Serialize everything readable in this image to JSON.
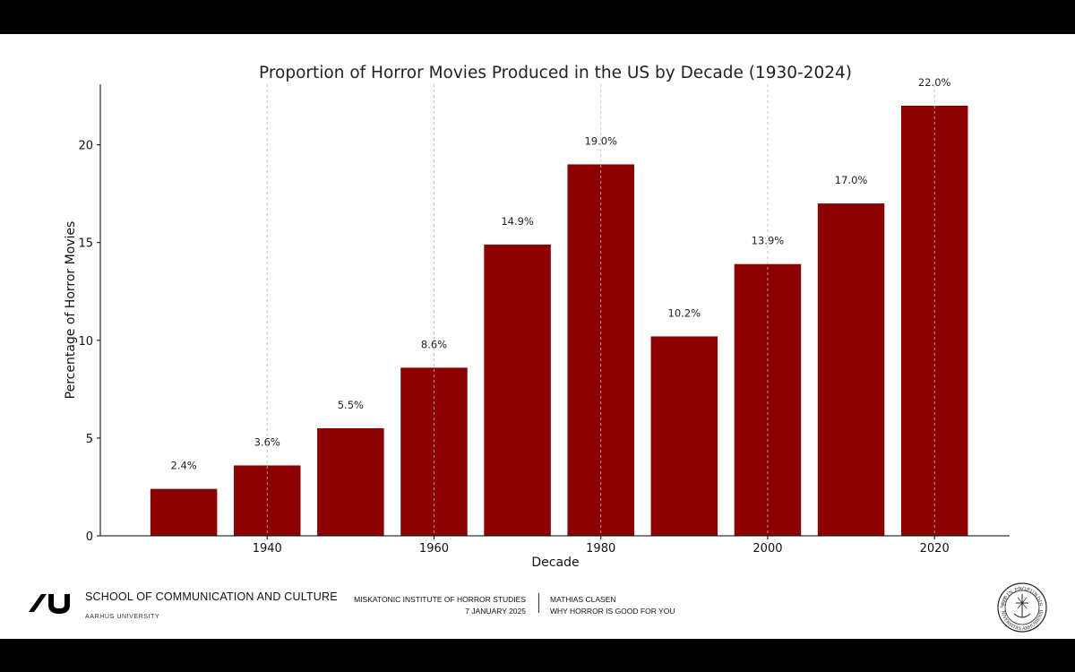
{
  "chart_data": {
    "type": "bar",
    "title": "Proportion of Horror Movies Produced in the US by Decade (1930-2024)",
    "xlabel": "Decade",
    "ylabel": "Percentage of Horror Movies",
    "x": [
      1930,
      1940,
      1950,
      1960,
      1970,
      1980,
      1990,
      2000,
      2010,
      2020
    ],
    "values": [
      2.4,
      3.6,
      5.5,
      8.6,
      14.9,
      19.0,
      10.2,
      13.9,
      17.0,
      22.0
    ],
    "data_labels": [
      "2.4%",
      "3.6%",
      "5.5%",
      "8.6%",
      "14.9%",
      "19.0%",
      "10.2%",
      "13.9%",
      "17.0%",
      "22.0%"
    ],
    "xticks": [
      1940,
      1960,
      1980,
      2000,
      2020
    ],
    "yticks": [
      0,
      5,
      10,
      15,
      20
    ],
    "xlim": [
      1920,
      2029
    ],
    "ylim": [
      0,
      23.1
    ],
    "bar_color": "#8b0000",
    "grid": "vertical dashed at x ticks"
  },
  "footer": {
    "school": "SCHOOL OF COMMUNICATION AND CULTURE",
    "university": "AARHUS UNIVERSITY",
    "institute": "MISKATONIC INSTITUTE OF HORROR STUDIES",
    "date": "7 JANUARY 2025",
    "author": "MATHIAS CLASEN",
    "talk": "WHY HORROR IS GOOD FOR YOU"
  },
  "seal": {
    "text_top": "FIT IN PROFUNDIS",
    "text_side": "SOLUS",
    "text_bottom": "UNIVERSITAS ARHUSIENSIS"
  }
}
